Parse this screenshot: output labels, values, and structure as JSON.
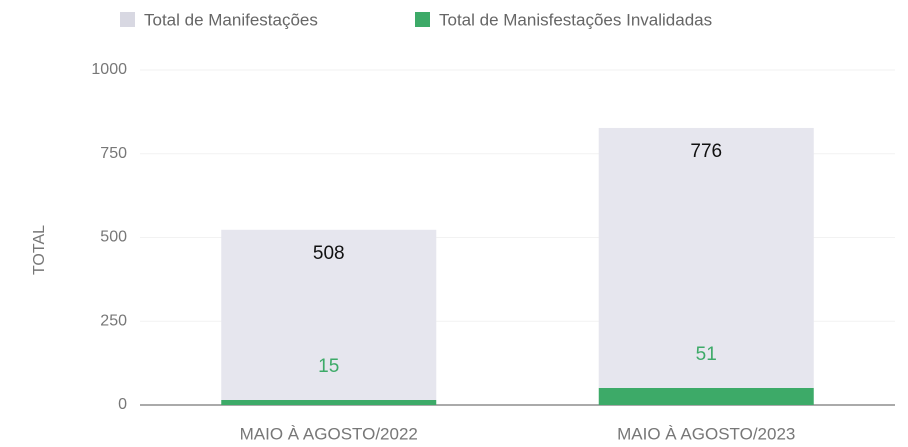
{
  "chart_data": {
    "type": "bar",
    "stacked": true,
    "y_label": "TOTAL",
    "categories": [
      "MAIO À AGOSTO/2022",
      "MAIO À AGOSTO/2023"
    ],
    "series": [
      {
        "name": "Total de Manifestações",
        "color": "#e6e6ee",
        "label_color": "#111111",
        "values": [
          508,
          776
        ]
      },
      {
        "name": "Total de Manisfestações Invalidadas",
        "color": "#3daa68",
        "label_color": "#3daa68",
        "values": [
          15,
          51
        ]
      }
    ],
    "ylim": [
      0,
      1000
    ],
    "yticks": [
      0,
      250,
      500,
      750,
      1000
    ],
    "grid": true
  }
}
